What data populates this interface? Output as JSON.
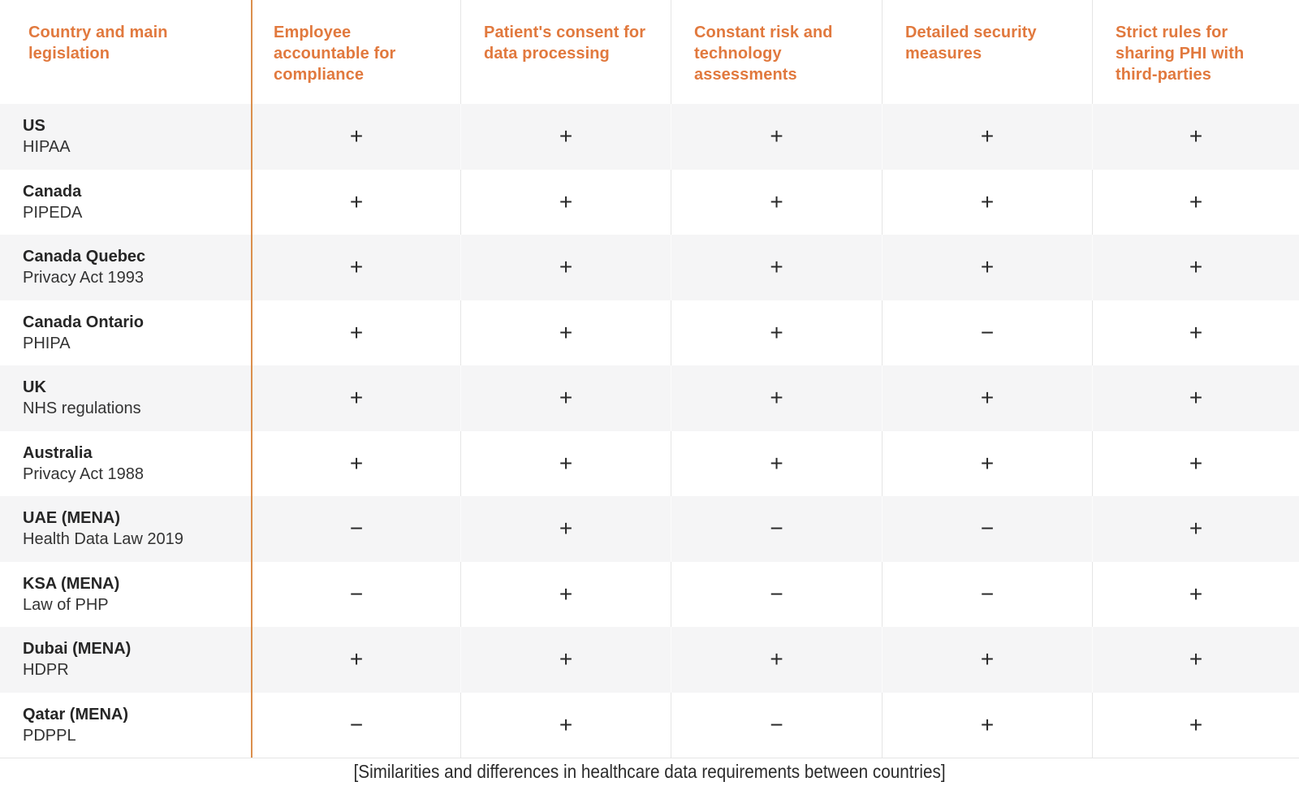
{
  "chart_data": {
    "type": "table",
    "caption": "[Similarities and differences in healthcare data requirements between countries]",
    "columns": [
      "Country and main legislation",
      "Employee accountable for compliance",
      "Patient's consent for data processing",
      "Constant risk and technology assessments",
      "Detailed security measures",
      "Strict rules for sharing PHI with third-parties"
    ],
    "rows": [
      {
        "country": "US",
        "legislation": "HIPAA",
        "values": [
          "+",
          "+",
          "+",
          "+",
          "+"
        ]
      },
      {
        "country": "Canada",
        "legislation": "PIPEDA",
        "values": [
          "+",
          "+",
          "+",
          "+",
          "+"
        ]
      },
      {
        "country": "Canada Quebec",
        "legislation": "Privacy Act 1993",
        "values": [
          "+",
          "+",
          "+",
          "+",
          "+"
        ]
      },
      {
        "country": "Canada Ontario",
        "legislation": "PHIPA",
        "values": [
          "+",
          "+",
          "+",
          "−",
          "+"
        ]
      },
      {
        "country": "UK",
        "legislation": "NHS regulations",
        "values": [
          "+",
          "+",
          "+",
          "+",
          "+"
        ]
      },
      {
        "country": "Australia",
        "legislation": "Privacy Act 1988",
        "values": [
          "+",
          "+",
          "+",
          "+",
          "+"
        ]
      },
      {
        "country": "UAE (MENA)",
        "legislation": "Health Data Law 2019",
        "values": [
          "−",
          "+",
          "−",
          "−",
          "+"
        ]
      },
      {
        "country": "KSA (MENA)",
        "legislation": "Law of PHP",
        "values": [
          "−",
          "+",
          "−",
          "−",
          "+"
        ]
      },
      {
        "country": "Dubai (MENA)",
        "legislation": "HDPR",
        "values": [
          "+",
          "+",
          "+",
          "+",
          "+"
        ]
      },
      {
        "country": "Qatar (MENA)",
        "legislation": "PDPPL",
        "values": [
          "−",
          "+",
          "−",
          "+",
          "+"
        ]
      }
    ],
    "legend": {
      "plus_means": "+",
      "minus_means": "−"
    }
  },
  "colors": {
    "header_text": "#E1793E",
    "accent_divider": "#DB8F4D",
    "row_stripe": "#F5F5F6",
    "grid_line": "#E5E5E5",
    "text": "#2D2D2D"
  }
}
